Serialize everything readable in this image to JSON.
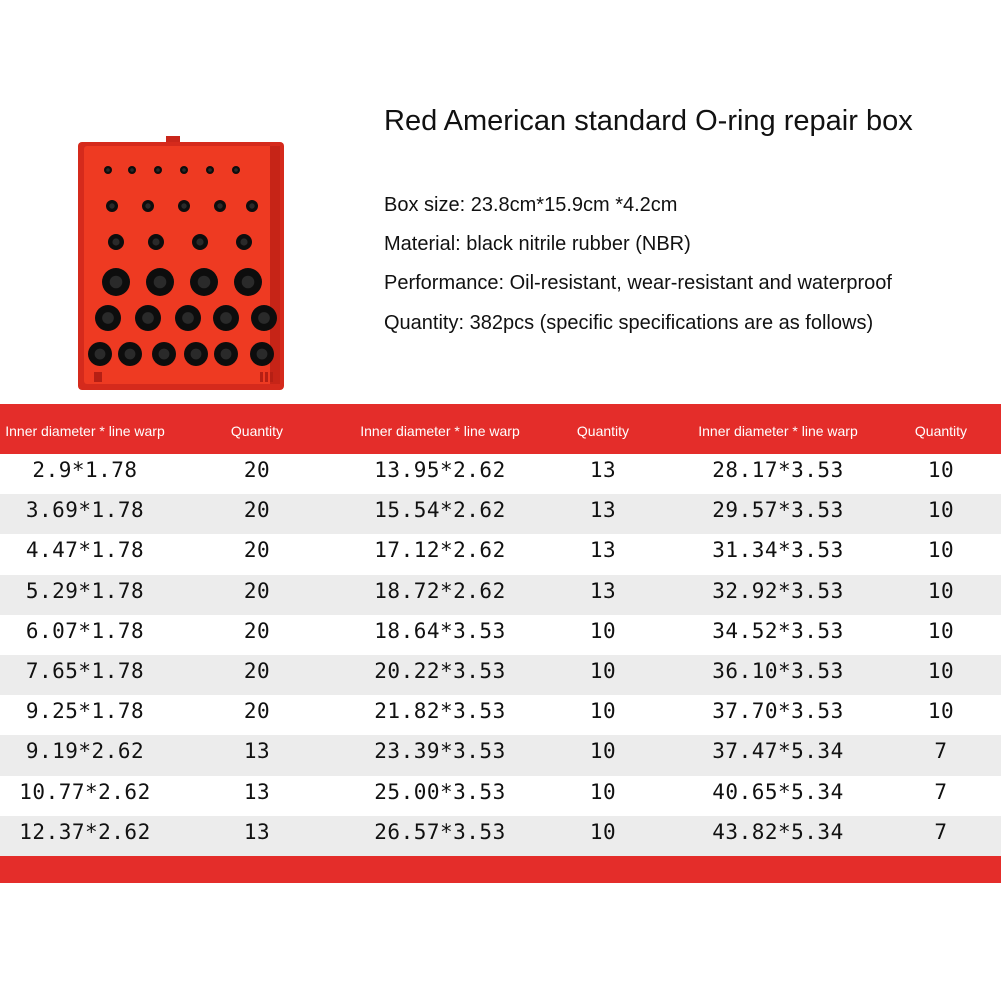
{
  "title": "Red American standard O-ring repair box",
  "specs": {
    "box_size": "Box size: 23.8cm*15.9cm *4.2cm",
    "material": "Material: black nitrile rubber (NBR)",
    "performance": "Performance: Oil-resistant, wear-resistant and waterproof",
    "quantity": "Quantity: 382pcs (specific specifications are as follows)"
  },
  "image": {
    "semantic": "o-ring-kit-photo",
    "case_color": "#e8331f",
    "ring_color": "#0d0d0d"
  },
  "colors": {
    "accent": "#e42d2a",
    "stripe": "#ececec"
  },
  "table": {
    "headers": [
      "Inner diameter * line warp",
      "Quantity",
      "Inner diameter * line warp",
      "Quantity",
      "Inner diameter * line warp",
      "Quantity"
    ],
    "rows": [
      [
        "2.9*1.78",
        "20",
        "13.95*2.62",
        "13",
        "28.17*3.53",
        "10"
      ],
      [
        "3.69*1.78",
        "20",
        "15.54*2.62",
        "13",
        "29.57*3.53",
        "10"
      ],
      [
        "4.47*1.78",
        "20",
        "17.12*2.62",
        "13",
        "31.34*3.53",
        "10"
      ],
      [
        "5.29*1.78",
        "20",
        "18.72*2.62",
        "13",
        "32.92*3.53",
        "10"
      ],
      [
        "6.07*1.78",
        "20",
        "18.64*3.53",
        "10",
        "34.52*3.53",
        "10"
      ],
      [
        "7.65*1.78",
        "20",
        "20.22*3.53",
        "10",
        "36.10*3.53",
        "10"
      ],
      [
        "9.25*1.78",
        "20",
        "21.82*3.53",
        "10",
        "37.70*3.53",
        "10"
      ],
      [
        "9.19*2.62",
        "13",
        "23.39*3.53",
        "10",
        "37.47*5.34",
        "7"
      ],
      [
        "10.77*2.62",
        "13",
        "25.00*3.53",
        "10",
        "40.65*5.34",
        "7"
      ],
      [
        "12.37*2.62",
        "13",
        "26.57*3.53",
        "10",
        "43.82*5.34",
        "7"
      ]
    ]
  }
}
